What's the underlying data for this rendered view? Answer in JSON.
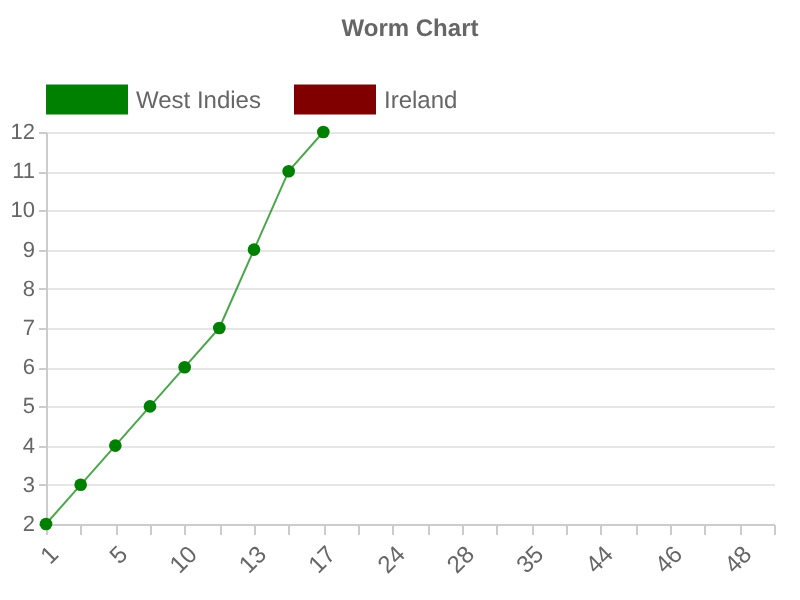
{
  "chart_data": {
    "type": "line",
    "title": "Worm Chart",
    "categories": [
      "1",
      null,
      "5",
      null,
      "10",
      null,
      "13",
      null,
      "17",
      null,
      "24",
      null,
      "28",
      null,
      "35",
      null,
      "44",
      null,
      "46",
      null,
      "48",
      null
    ],
    "series": [
      {
        "name": "West Indies",
        "color": "#008000",
        "values": [
          2,
          3,
          4,
          5,
          6,
          7,
          9,
          11,
          12,
          null,
          null,
          null,
          null,
          null,
          null,
          null,
          null,
          null,
          null,
          null,
          null,
          null
        ]
      },
      {
        "name": "Ireland",
        "color": "#800000",
        "values": [
          null,
          null,
          null,
          null,
          null,
          null,
          null,
          null,
          null,
          null,
          null,
          null,
          null,
          null,
          null,
          null,
          null,
          null,
          null,
          null,
          null,
          null
        ]
      }
    ],
    "ylim": [
      2,
      12
    ],
    "yticks": [
      2,
      3,
      4,
      5,
      6,
      7,
      8,
      9,
      10,
      11,
      12
    ],
    "grid": "y",
    "legend": "top",
    "marker": "circle"
  }
}
